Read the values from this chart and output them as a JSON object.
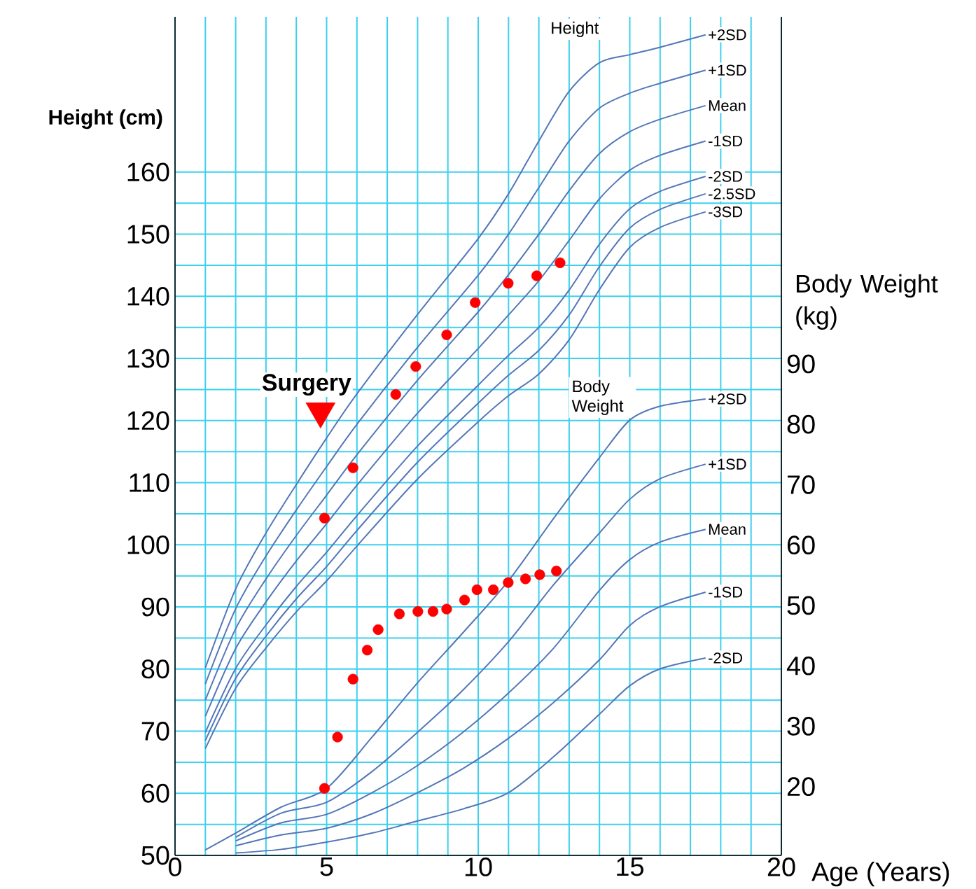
{
  "chart_data": {
    "type": "line",
    "xlabel": "Age (Years)",
    "ylabel": "Height (cm)",
    "y2label": "Body Weight (kg)",
    "xlim": [
      0,
      20
    ],
    "xticks": [
      0,
      5,
      10,
      15,
      20
    ],
    "ylim": [
      50,
      185
    ],
    "yticks": [
      50,
      60,
      70,
      80,
      90,
      100,
      110,
      120,
      130,
      140,
      150,
      160
    ],
    "y2lim": [
      8.6,
      147.5
    ],
    "y2ticks": [
      20,
      30,
      40,
      50,
      60,
      70,
      80,
      90
    ],
    "grid": true,
    "annotations": [
      "Height",
      "Body Weight",
      {
        "text": "Surgery",
        "x": 4.8,
        "y": 121.5
      }
    ],
    "series": [
      {
        "name": "+2SD",
        "color": "#5277b8",
        "x": [
          1,
          2,
          3,
          4,
          5,
          6,
          8,
          10,
          11,
          12,
          13,
          14,
          15,
          16,
          17.5
        ],
        "values": [
          80.2,
          92.9,
          101.9,
          109.7,
          117.2,
          124.3,
          137.1,
          149.3,
          156.5,
          165.0,
          173.0,
          177.6,
          178.9,
          180.1,
          182.1
        ]
      },
      {
        "name": "+1SD",
        "color": "#5277b8",
        "x": [
          1,
          2,
          3,
          4,
          5,
          6,
          8,
          10,
          11,
          12,
          13,
          14,
          15,
          16,
          17.5
        ],
        "values": [
          77.6,
          89.7,
          98.2,
          105.6,
          112.6,
          119.4,
          131.8,
          143.4,
          150.0,
          157.5,
          165.0,
          170.3,
          172.7,
          174.3,
          176.4
        ]
      },
      {
        "name": "Mean",
        "color": "#5277b8",
        "x": [
          1,
          2,
          3,
          4,
          5,
          6,
          8,
          10,
          11,
          12,
          13,
          14,
          15,
          16,
          17.5
        ],
        "values": [
          75.0,
          86.5,
          94.5,
          101.5,
          108.0,
          114.5,
          126.5,
          137.5,
          143.5,
          150.0,
          157.0,
          163.0,
          166.5,
          168.5,
          170.7
        ]
      },
      {
        "name": "-1SD",
        "color": "#5277b8",
        "x": [
          1,
          2,
          3,
          4,
          5,
          6,
          8,
          10,
          11,
          12,
          13,
          14,
          15,
          16,
          17.5
        ],
        "values": [
          72.4,
          83.3,
          90.8,
          97.4,
          103.4,
          109.6,
          121.2,
          131.6,
          137.0,
          142.5,
          149.0,
          155.7,
          160.3,
          162.7,
          165.0
        ]
      },
      {
        "name": "-2SD",
        "color": "#5277b8",
        "x": [
          1,
          2,
          3,
          4,
          5,
          6,
          8,
          10,
          11,
          12,
          13,
          14,
          15,
          16,
          17.5
        ],
        "values": [
          69.8,
          80.1,
          87.1,
          93.3,
          98.8,
          104.7,
          115.9,
          125.7,
          130.5,
          135.0,
          141.0,
          148.4,
          154.1,
          156.9,
          159.3
        ]
      },
      {
        "name": "-2.5SD",
        "color": "#5277b8",
        "x": [
          1,
          2,
          3,
          4,
          5,
          6,
          8,
          10,
          11,
          12,
          13,
          14,
          15,
          16,
          17.5
        ],
        "values": [
          68.5,
          78.5,
          85.3,
          91.3,
          96.5,
          102.3,
          113.3,
          122.8,
          127.3,
          131.3,
          137.0,
          144.8,
          151.0,
          154.0,
          156.5
        ]
      },
      {
        "name": "-3SD",
        "color": "#5277b8",
        "x": [
          1,
          2,
          3,
          4,
          5,
          6,
          8,
          10,
          11,
          12,
          13,
          14,
          15,
          16,
          17.5
        ],
        "values": [
          67.2,
          76.9,
          83.4,
          89.2,
          94.2,
          99.8,
          110.6,
          119.8,
          124.0,
          127.5,
          133.0,
          141.1,
          147.9,
          151.1,
          153.6
        ]
      },
      {
        "axis": "y2",
        "name": "+2SD",
        "color": "#5277b8",
        "x": [
          1,
          2,
          3.5,
          5,
          6.5,
          8,
          9.5,
          11,
          12.5,
          14,
          15,
          16,
          17.5
        ],
        "values": [
          9.5,
          12.3,
          16.6,
          19.7,
          28.2,
          37.2,
          45.5,
          54.1,
          64.5,
          74.5,
          80.7,
          83.0,
          84.2
        ]
      },
      {
        "axis": "y2",
        "name": "+1SD",
        "color": "#5277b8",
        "x": [
          2,
          3.5,
          5,
          6.5,
          8,
          9.5,
          11,
          12.5,
          14,
          15,
          16,
          17.5
        ],
        "values": [
          11.6,
          15.6,
          17.4,
          22.5,
          29.0,
          36.0,
          44.0,
          53.5,
          62.0,
          67.6,
          71.0,
          73.4
        ]
      },
      {
        "axis": "y2",
        "name": "Mean",
        "color": "#5277b8",
        "x": [
          2,
          3.5,
          5,
          6.5,
          8,
          9.5,
          11,
          12.5,
          14,
          15,
          16,
          17.5
        ],
        "values": [
          11.0,
          14.0,
          15.4,
          19.0,
          23.5,
          29.0,
          35.5,
          43.0,
          52.5,
          57.6,
          60.5,
          62.6
        ]
      },
      {
        "axis": "y2",
        "name": "-1SD",
        "color": "#5277b8",
        "x": [
          2,
          3.5,
          5,
          6.5,
          8,
          9.5,
          11,
          12.5,
          14,
          15,
          16,
          17.5
        ],
        "values": [
          10.2,
          12.0,
          13.1,
          15.5,
          19.0,
          23.0,
          28.0,
          34.0,
          41.0,
          46.7,
          49.8,
          52.2
        ]
      },
      {
        "axis": "y2",
        "name": "-2SD",
        "color": "#5277b8",
        "x": [
          2,
          3.5,
          5,
          6.5,
          8,
          9.5,
          11,
          12.5,
          14,
          15,
          16,
          17.5
        ],
        "values": [
          9.0,
          9.6,
          10.8,
          12.3,
          14.3,
          16.3,
          19.0,
          25.0,
          32.0,
          36.7,
          39.5,
          41.3
        ]
      },
      {
        "type": "scatter",
        "marker": "circle",
        "color": "#ff0000",
        "x": [
          4.93,
          5.87,
          7.28,
          7.94,
          8.96,
          9.9,
          10.99,
          11.93,
          12.7
        ],
        "values": [
          104.3,
          112.4,
          124.2,
          128.7,
          133.8,
          139.0,
          142.1,
          143.3,
          145.4
        ]
      },
      {
        "type": "scatter",
        "axis": "y2",
        "marker": "circle",
        "color": "#ff0000",
        "x": [
          4.93,
          5.36,
          5.87,
          6.34,
          6.7,
          7.4,
          8.01,
          8.51,
          8.96,
          9.55,
          9.96,
          10.5,
          10.99,
          11.56,
          12.03,
          12.58
        ],
        "values": [
          19.7,
          28.2,
          37.8,
          42.6,
          46.0,
          48.6,
          49.0,
          49.0,
          49.4,
          50.9,
          52.6,
          52.6,
          53.8,
          54.4,
          55.1,
          55.7
        ]
      },
      {
        "type": "scatter",
        "marker": "triangle",
        "color": "#ff0000",
        "x": [
          4.8
        ],
        "values": [
          121.5
        ]
      }
    ]
  }
}
